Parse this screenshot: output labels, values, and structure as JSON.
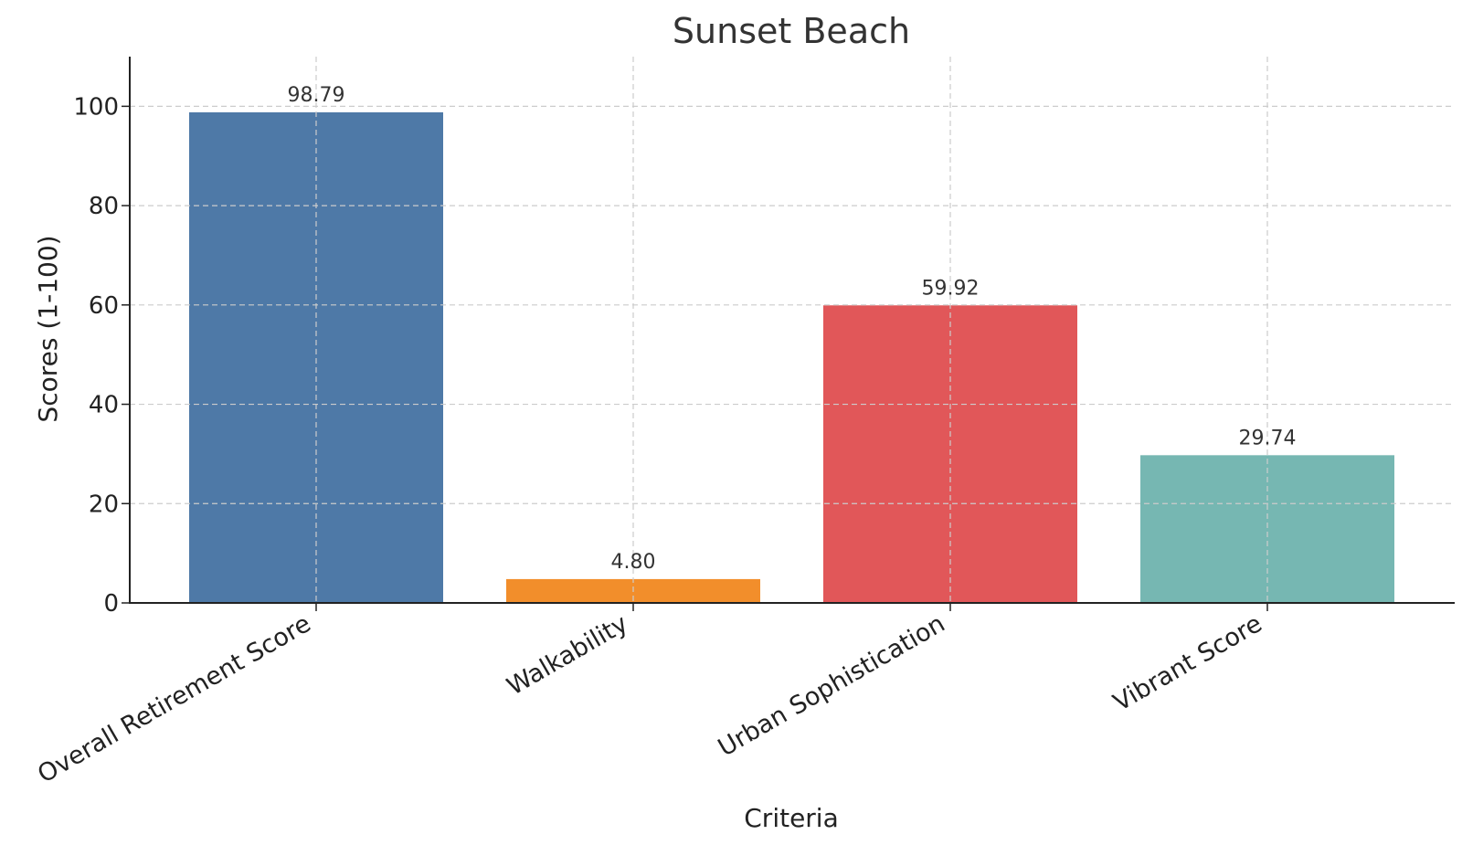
{
  "chart_data": {
    "type": "bar",
    "title": "Sunset Beach",
    "xlabel": "Criteria",
    "ylabel": "Scores (1-100)",
    "categories": [
      "Overall Retirement Score",
      "Walkability",
      "Urban Sophistication",
      "Vibrant Score"
    ],
    "values": [
      98.79,
      4.8,
      59.92,
      29.74
    ],
    "value_labels": [
      "98.79",
      "4.80",
      "59.92",
      "29.74"
    ],
    "colors": [
      "#4e79a7",
      "#f28e2b",
      "#e15759",
      "#76b7b2"
    ],
    "ylim": [
      0,
      110
    ],
    "yticks": [
      0,
      20,
      40,
      60,
      80,
      100
    ],
    "grid": true,
    "legend": false
  }
}
